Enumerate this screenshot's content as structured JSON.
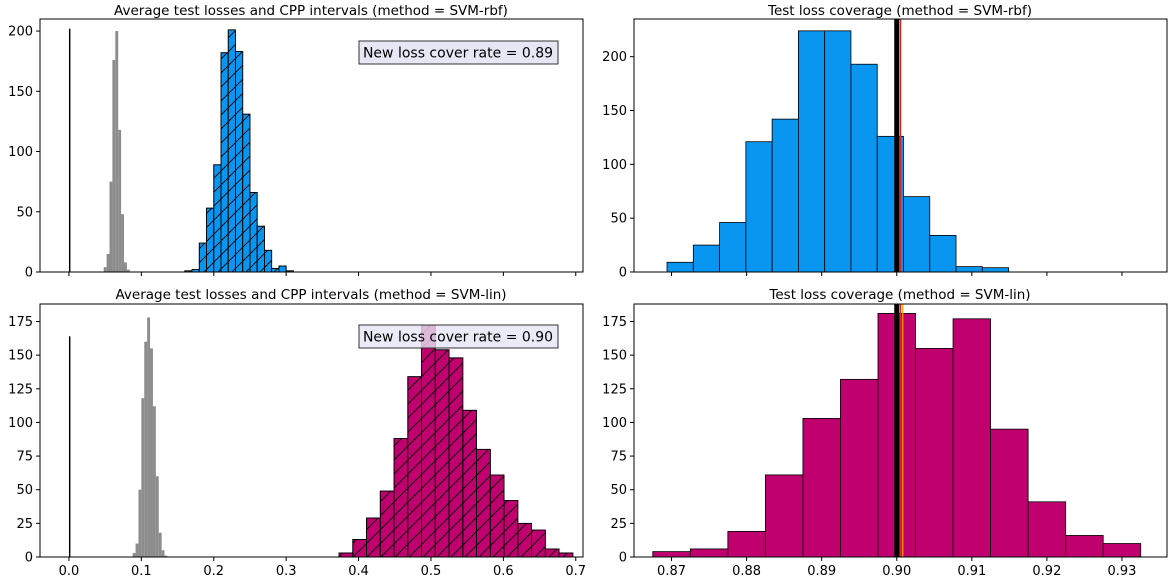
{
  "chart_data": [
    {
      "type": "histogram",
      "title": "Average test losses and CPP intervals (method = SVM-rbf)",
      "annotation": "New loss cover rate = 0.89",
      "xlim": [
        -0.04,
        0.71
      ],
      "ylim": [
        0,
        210
      ],
      "yticks": [
        0,
        50,
        100,
        150,
        200
      ],
      "xticks": [
        0.0,
        0.1,
        0.2,
        0.3,
        0.4,
        0.5,
        0.6,
        0.7
      ],
      "show_xtick_labels": false,
      "series": [
        {
          "color": "#000000",
          "hatch": false,
          "bins": [
            {
              "x0": 0.0,
              "x1": 0.002,
              "h": 202
            }
          ]
        },
        {
          "color": "#8c8c8c",
          "hatch": false,
          "bins": [
            {
              "x0": 0.048,
              "x1": 0.052,
              "h": 4
            },
            {
              "x0": 0.052,
              "x1": 0.056,
              "h": 15
            },
            {
              "x0": 0.056,
              "x1": 0.06,
              "h": 75
            },
            {
              "x0": 0.06,
              "x1": 0.064,
              "h": 176
            },
            {
              "x0": 0.064,
              "x1": 0.068,
              "h": 200
            },
            {
              "x0": 0.068,
              "x1": 0.072,
              "h": 118
            },
            {
              "x0": 0.072,
              "x1": 0.076,
              "h": 48
            },
            {
              "x0": 0.076,
              "x1": 0.08,
              "h": 8
            },
            {
              "x0": 0.08,
              "x1": 0.084,
              "h": 2
            }
          ]
        },
        {
          "color": "#0896f0",
          "hatch": true,
          "bins": [
            {
              "x0": 0.16,
              "x1": 0.17,
              "h": 1
            },
            {
              "x0": 0.17,
              "x1": 0.18,
              "h": 2
            },
            {
              "x0": 0.18,
              "x1": 0.19,
              "h": 24
            },
            {
              "x0": 0.19,
              "x1": 0.2,
              "h": 53
            },
            {
              "x0": 0.2,
              "x1": 0.21,
              "h": 89
            },
            {
              "x0": 0.21,
              "x1": 0.22,
              "h": 182
            },
            {
              "x0": 0.22,
              "x1": 0.23,
              "h": 201
            },
            {
              "x0": 0.23,
              "x1": 0.24,
              "h": 183
            },
            {
              "x0": 0.24,
              "x1": 0.25,
              "h": 131
            },
            {
              "x0": 0.25,
              "x1": 0.26,
              "h": 66
            },
            {
              "x0": 0.26,
              "x1": 0.27,
              "h": 38
            },
            {
              "x0": 0.27,
              "x1": 0.28,
              "h": 18
            },
            {
              "x0": 0.28,
              "x1": 0.29,
              "h": 3
            },
            {
              "x0": 0.29,
              "x1": 0.3,
              "h": 5
            },
            {
              "x0": 0.3,
              "x1": 0.31,
              "h": 1
            }
          ]
        }
      ]
    },
    {
      "type": "histogram",
      "title": "Test loss coverage (method = SVM-rbf)",
      "xlim": [
        0.865,
        0.936
      ],
      "ylim": [
        0,
        235
      ],
      "yticks": [
        0,
        50,
        100,
        150,
        200
      ],
      "xticks": [
        0.87,
        0.88,
        0.89,
        0.9,
        0.91,
        0.92,
        0.93
      ],
      "show_xtick_labels": false,
      "series": [
        {
          "color": "#0896f0",
          "hatch": false,
          "bins": [
            {
              "x0": 0.8694,
              "x1": 0.8729,
              "h": 9
            },
            {
              "x0": 0.8729,
              "x1": 0.8764,
              "h": 25
            },
            {
              "x0": 0.8764,
              "x1": 0.8799,
              "h": 46
            },
            {
              "x0": 0.8799,
              "x1": 0.8834,
              "h": 121
            },
            {
              "x0": 0.8834,
              "x1": 0.8869,
              "h": 142
            },
            {
              "x0": 0.8869,
              "x1": 0.8904,
              "h": 224
            },
            {
              "x0": 0.8904,
              "x1": 0.8939,
              "h": 224
            },
            {
              "x0": 0.8939,
              "x1": 0.8974,
              "h": 193
            },
            {
              "x0": 0.8974,
              "x1": 0.9009,
              "h": 126
            },
            {
              "x0": 0.9009,
              "x1": 0.9044,
              "h": 70
            },
            {
              "x0": 0.9044,
              "x1": 0.9079,
              "h": 34
            },
            {
              "x0": 0.9079,
              "x1": 0.9114,
              "h": 5
            },
            {
              "x0": 0.9114,
              "x1": 0.9149,
              "h": 4
            }
          ]
        }
      ],
      "vlines": [
        {
          "x": 0.9,
          "color": "#000000",
          "width": 5
        },
        {
          "x": 0.9005,
          "color": "#d62728",
          "width": 1.5
        }
      ]
    },
    {
      "type": "histogram",
      "title": "Average test losses and CPP intervals (method = SVM-lin)",
      "annotation": "New loss cover rate = 0.90",
      "xlim": [
        -0.04,
        0.71
      ],
      "ylim": [
        0,
        188
      ],
      "yticks": [
        0,
        25,
        50,
        75,
        100,
        125,
        150,
        175
      ],
      "xticks": [
        0.0,
        0.1,
        0.2,
        0.3,
        0.4,
        0.5,
        0.6,
        0.7
      ],
      "xtick_labels": [
        "0.0",
        "0.1",
        "0.2",
        "0.3",
        "0.4",
        "0.5",
        "0.6",
        "0.7"
      ],
      "show_xtick_labels": true,
      "series": [
        {
          "color": "#000000",
          "hatch": false,
          "bins": [
            {
              "x0": 0.0,
              "x1": 0.002,
              "h": 164
            }
          ]
        },
        {
          "color": "#8c8c8c",
          "hatch": false,
          "bins": [
            {
              "x0": 0.088,
              "x1": 0.092,
              "h": 3
            },
            {
              "x0": 0.092,
              "x1": 0.096,
              "h": 10
            },
            {
              "x0": 0.096,
              "x1": 0.1,
              "h": 50
            },
            {
              "x0": 0.1,
              "x1": 0.104,
              "h": 118
            },
            {
              "x0": 0.104,
              "x1": 0.108,
              "h": 160
            },
            {
              "x0": 0.108,
              "x1": 0.112,
              "h": 178
            },
            {
              "x0": 0.112,
              "x1": 0.116,
              "h": 155
            },
            {
              "x0": 0.116,
              "x1": 0.12,
              "h": 112
            },
            {
              "x0": 0.12,
              "x1": 0.124,
              "h": 60
            },
            {
              "x0": 0.124,
              "x1": 0.128,
              "h": 18
            },
            {
              "x0": 0.128,
              "x1": 0.132,
              "h": 5
            },
            {
              "x0": 0.132,
              "x1": 0.136,
              "h": 1
            }
          ]
        },
        {
          "color": "#c0006f",
          "hatch": true,
          "bins": [
            {
              "x0": 0.373,
              "x1": 0.392,
              "h": 3
            },
            {
              "x0": 0.392,
              "x1": 0.411,
              "h": 13
            },
            {
              "x0": 0.411,
              "x1": 0.43,
              "h": 29
            },
            {
              "x0": 0.43,
              "x1": 0.449,
              "h": 49
            },
            {
              "x0": 0.449,
              "x1": 0.468,
              "h": 88
            },
            {
              "x0": 0.468,
              "x1": 0.487,
              "h": 134
            },
            {
              "x0": 0.487,
              "x1": 0.506,
              "h": 172
            },
            {
              "x0": 0.506,
              "x1": 0.525,
              "h": 154
            },
            {
              "x0": 0.525,
              "x1": 0.544,
              "h": 148
            },
            {
              "x0": 0.544,
              "x1": 0.563,
              "h": 109
            },
            {
              "x0": 0.563,
              "x1": 0.582,
              "h": 80
            },
            {
              "x0": 0.582,
              "x1": 0.601,
              "h": 61
            },
            {
              "x0": 0.601,
              "x1": 0.62,
              "h": 42
            },
            {
              "x0": 0.62,
              "x1": 0.639,
              "h": 25
            },
            {
              "x0": 0.639,
              "x1": 0.658,
              "h": 20
            },
            {
              "x0": 0.658,
              "x1": 0.677,
              "h": 6
            },
            {
              "x0": 0.677,
              "x1": 0.696,
              "h": 3
            }
          ]
        }
      ]
    },
    {
      "type": "histogram",
      "title": "Test loss coverage (method = SVM-lin)",
      "xlim": [
        0.865,
        0.936
      ],
      "ylim": [
        0,
        188
      ],
      "yticks": [
        0,
        25,
        50,
        75,
        100,
        125,
        150,
        175
      ],
      "xticks": [
        0.87,
        0.88,
        0.89,
        0.9,
        0.91,
        0.92,
        0.93
      ],
      "xtick_labels": [
        "0.87",
        "0.88",
        "0.89",
        "0.90",
        "0.91",
        "0.92",
        "0.93"
      ],
      "show_xtick_labels": true,
      "series": [
        {
          "color": "#c0006f",
          "hatch": false,
          "bins": [
            {
              "x0": 0.8675,
              "x1": 0.8725,
              "h": 4
            },
            {
              "x0": 0.8725,
              "x1": 0.8775,
              "h": 6
            },
            {
              "x0": 0.8775,
              "x1": 0.8825,
              "h": 19
            },
            {
              "x0": 0.8825,
              "x1": 0.8875,
              "h": 61
            },
            {
              "x0": 0.8875,
              "x1": 0.8925,
              "h": 103
            },
            {
              "x0": 0.8925,
              "x1": 0.8975,
              "h": 132
            },
            {
              "x0": 0.8975,
              "x1": 0.9025,
              "h": 181
            },
            {
              "x0": 0.9025,
              "x1": 0.9075,
              "h": 155
            },
            {
              "x0": 0.9075,
              "x1": 0.9125,
              "h": 177
            },
            {
              "x0": 0.9125,
              "x1": 0.9175,
              "h": 95
            },
            {
              "x0": 0.9175,
              "x1": 0.9225,
              "h": 41
            },
            {
              "x0": 0.9225,
              "x1": 0.9275,
              "h": 16
            },
            {
              "x0": 0.9275,
              "x1": 0.9325,
              "h": 10
            }
          ]
        }
      ],
      "vlines": [
        {
          "x": 0.9,
          "color": "#000000",
          "width": 5
        },
        {
          "x": 0.9005,
          "color": "#d62728",
          "width": 1.5
        },
        {
          "x": 0.9008,
          "color": "#ff9f00",
          "width": 1.2
        }
      ]
    }
  ]
}
